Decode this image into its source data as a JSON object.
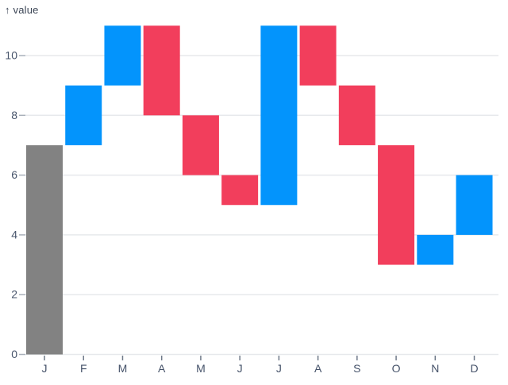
{
  "chart_data": {
    "type": "bar",
    "subtype": "waterfall",
    "title": "",
    "xlabel": "",
    "ylabel": "value",
    "ylabel_display": "↑ value",
    "categories": [
      "J",
      "F",
      "M",
      "A",
      "M",
      "J",
      "J",
      "A",
      "S",
      "O",
      "N",
      "D"
    ],
    "y_ticks": [
      0,
      2,
      4,
      6,
      8,
      10
    ],
    "ylim": [
      0,
      11
    ],
    "grid": true,
    "legend": false,
    "bars": [
      {
        "month": "J",
        "from": 0,
        "to": 7,
        "delta": 7,
        "kind": "initial"
      },
      {
        "month": "F",
        "from": 7,
        "to": 9,
        "delta": 2,
        "kind": "increase"
      },
      {
        "month": "M",
        "from": 9,
        "to": 11,
        "delta": 2,
        "kind": "increase"
      },
      {
        "month": "A",
        "from": 11,
        "to": 8,
        "delta": -3,
        "kind": "decrease"
      },
      {
        "month": "M",
        "from": 8,
        "to": 6,
        "delta": -2,
        "kind": "decrease"
      },
      {
        "month": "J",
        "from": 6,
        "to": 5,
        "delta": -1,
        "kind": "decrease"
      },
      {
        "month": "J",
        "from": 5,
        "to": 11,
        "delta": 6,
        "kind": "increase"
      },
      {
        "month": "A",
        "from": 11,
        "to": 9,
        "delta": -2,
        "kind": "decrease"
      },
      {
        "month": "S",
        "from": 9,
        "to": 7,
        "delta": -2,
        "kind": "decrease"
      },
      {
        "month": "O",
        "from": 7,
        "to": 3,
        "delta": -4,
        "kind": "decrease"
      },
      {
        "month": "N",
        "from": 3,
        "to": 4,
        "delta": 1,
        "kind": "increase"
      },
      {
        "month": "D",
        "from": 4,
        "to": 6,
        "delta": 2,
        "kind": "increase"
      }
    ],
    "running_totals": [
      7,
      9,
      11,
      8,
      6,
      5,
      11,
      9,
      7,
      3,
      4,
      6
    ],
    "colors": {
      "increase": "#0394fc",
      "decrease": "#f23e5c",
      "initial": "#828282",
      "gridline": "#e7e9ec",
      "y_tick": "#a9b0ba",
      "x_tick": "#6f7a89",
      "axis_text": "#46536a",
      "axis_title_text": "#3b4555",
      "background": "#ffffff"
    }
  }
}
